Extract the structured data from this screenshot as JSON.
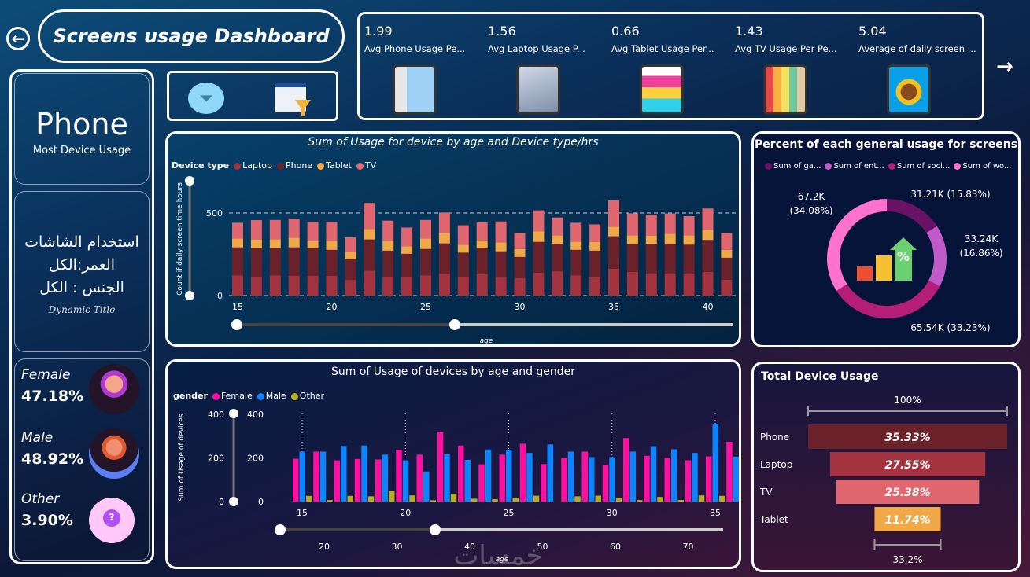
{
  "header": {
    "title": "Screens usage Dashboard",
    "back_icon": "back-arrow-icon",
    "next_icon": "next-arrow-icon"
  },
  "left_panel": {
    "most_device": "Phone",
    "most_device_label": "Most Device Usage",
    "dynamic_lines": [
      "استخدام الشاشات",
      "العمر:الكل",
      "الجنس : الكل"
    ],
    "dynamic_caption": "Dynamic Title",
    "genders": [
      {
        "label": "Female",
        "value": "47.18%"
      },
      {
        "label": "Male",
        "value": "48.92%"
      },
      {
        "label": "Other",
        "value": "3.90%"
      }
    ]
  },
  "kpis": [
    {
      "value": "1.99",
      "label": "Avg Phone Usage Pe..."
    },
    {
      "value": "1.56",
      "label": "Avg Laptop Usage P..."
    },
    {
      "value": "0.66",
      "label": "Avg Tablet Usage Per..."
    },
    {
      "value": "1.43",
      "label": "Avg TV Usage Per Pe..."
    },
    {
      "value": "5.04",
      "label": "Average of daily screen ..."
    }
  ],
  "colors": {
    "laptop": "#a3333e",
    "phone": "#6b2129",
    "tablet": "#f0a848",
    "tv": "#e0666f",
    "female": "#ff0f9f",
    "male": "#0a84ff",
    "other": "#b5ad1f"
  },
  "chart_data": [
    {
      "type": "bar",
      "stacked": true,
      "title": "Sum of Usage for device by age and Device type/hrs",
      "legend_title": "Device type",
      "xlabel": "age",
      "ylabel": "Count if daily screen time hours",
      "ylim": [
        0,
        650
      ],
      "yticks": [
        "0",
        "500"
      ],
      "xticks": [
        "15",
        "20",
        "25",
        "30",
        "35",
        "40"
      ],
      "slider_labels": [],
      "categories": [
        15,
        16,
        17,
        18,
        19,
        20,
        21,
        22,
        23,
        24,
        25,
        26,
        27,
        28,
        29,
        30,
        31,
        32,
        33,
        34,
        35,
        36,
        37,
        38,
        39,
        40,
        41
      ],
      "series": [
        {
          "name": "Laptop",
          "values": [
            123,
            115,
            123,
            119,
            119,
            120,
            95,
            151,
            115,
            115,
            123,
            133,
            115,
            130,
            109,
            106,
            138,
            147,
            123,
            111,
            162,
            143,
            135,
            135,
            135,
            143,
            96
          ]
        },
        {
          "name": "Phone",
          "values": [
            169,
            173,
            165,
            173,
            168,
            157,
            126,
            189,
            157,
            138,
            159,
            183,
            145,
            157,
            159,
            128,
            187,
            167,
            154,
            161,
            197,
            168,
            178,
            176,
            173,
            194,
            133
          ]
        },
        {
          "name": "Tablet",
          "values": [
            53,
            52,
            53,
            59,
            43,
            55,
            43,
            64,
            60,
            45,
            64,
            62,
            48,
            48,
            54,
            48,
            65,
            50,
            50,
            52,
            59,
            54,
            49,
            64,
            57,
            62,
            48
          ]
        },
        {
          "name": "TV",
          "values": [
            96,
            117,
            117,
            115,
            116,
            114,
            89,
            157,
            122,
            114,
            112,
            125,
            118,
            109,
            127,
            98,
            126,
            109,
            114,
            107,
            159,
            133,
            128,
            122,
            116,
            128,
            101
          ]
        }
      ]
    },
    {
      "type": "bar",
      "title": "Sum of Usage of devices by age and gender",
      "legend_title": "gender",
      "xlabel": "age",
      "ylabel": "Sum of Usage of devices",
      "ylim": [
        0,
        400
      ],
      "yticks": [
        "0",
        "200",
        "400"
      ],
      "xticks": [
        "15",
        "20",
        "25",
        "30",
        "35"
      ],
      "slider_labels": [
        "20",
        "30",
        "40",
        "50",
        "60",
        "70"
      ],
      "categories": [
        15,
        16,
        17,
        18,
        19,
        20,
        21,
        22,
        23,
        24,
        25,
        26,
        27,
        28,
        29,
        30,
        31,
        32,
        33,
        34,
        35,
        36
      ],
      "series": [
        {
          "name": "Female",
          "values": [
            196,
            229,
            189,
            195,
            193,
            238,
            215,
            320,
            257,
            171,
            215,
            265,
            172,
            200,
            229,
            167,
            291,
            210,
            200,
            189,
            207,
            274
          ]
        },
        {
          "name": "Male",
          "values": [
            229,
            229,
            255,
            257,
            215,
            189,
            138,
            217,
            191,
            239,
            238,
            223,
            262,
            229,
            204,
            204,
            229,
            254,
            240,
            223,
            356,
            206
          ]
        },
        {
          "name": "Other",
          "values": [
            26,
            7,
            26,
            24,
            48,
            28,
            6,
            35,
            13,
            11,
            17,
            27,
            0,
            24,
            27,
            17,
            7,
            21,
            7,
            28,
            26,
            0
          ]
        }
      ]
    },
    {
      "type": "pie",
      "donut": true,
      "title": "Percent of each general usage for screens",
      "legend": [
        "Sum of ga...",
        "Sum of ent...",
        "Sum of soci...",
        "Sum of wo..."
      ],
      "values": [
        31.21,
        33.24,
        65.54,
        67.2
      ],
      "percents": [
        15.83,
        16.86,
        33.23,
        34.08
      ],
      "labels": [
        "31.21K (15.83%)",
        "33.24K\n(16.86%)",
        "65.54K (33.23%)",
        "67.2K\n(34.08%)"
      ],
      "colors": [
        "#6a1266",
        "#c05ac8",
        "#b41d78",
        "#ff72cd"
      ]
    },
    {
      "type": "bar",
      "funnel": true,
      "title": "Total Device Usage",
      "categories": [
        "Phone",
        "Laptop",
        "TV",
        "Tablet"
      ],
      "values": [
        35.33,
        27.55,
        25.38,
        11.74
      ],
      "labels": [
        "35.33%",
        "27.55%",
        "25.38%",
        "11.74%"
      ],
      "top_label": "100%",
      "bottom_label": "33.2%",
      "colors": [
        "#6b2129",
        "#a3333e",
        "#e0666f",
        "#f0a848"
      ]
    }
  ]
}
